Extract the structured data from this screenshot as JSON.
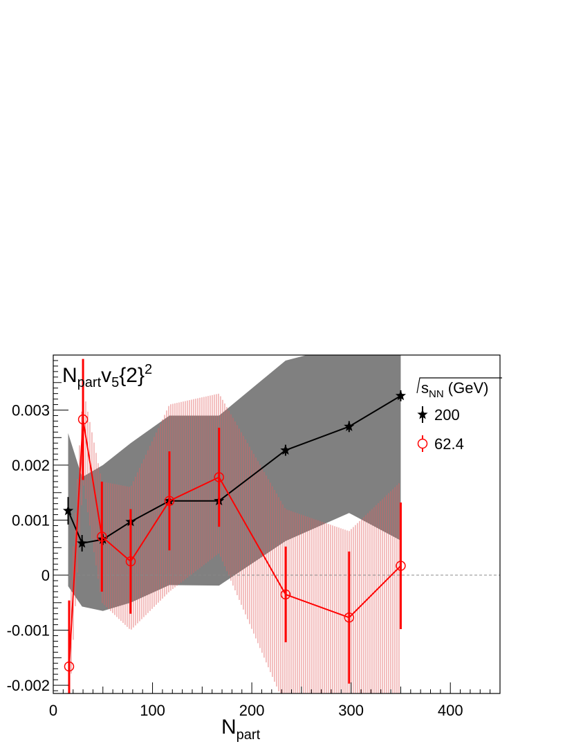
{
  "chart_data": {
    "type": "scatter",
    "title_main": "N",
    "title_sub": "part",
    "title_main2": "v",
    "title_sub2": "5",
    "title_tail": "{2}",
    "title_sup": "2",
    "xlabel_main": "N",
    "xlabel_sub": "part",
    "ylabel": "",
    "xlim": [
      0,
      450
    ],
    "ylim": [
      -0.00215,
      0.004
    ],
    "x_ticks": [
      "0",
      "100",
      "200",
      "300",
      "400"
    ],
    "y_ticks": [
      "-0.002",
      "-0.001",
      "0",
      "0.001",
      "0.002",
      "0.003"
    ],
    "y_tick_values": [
      -0.002,
      -0.001,
      0,
      0.001,
      0.002,
      0.003
    ],
    "x_tick_values": [
      0,
      100,
      200,
      300,
      400
    ],
    "legend": {
      "header_main": "s",
      "header_sub": "NN",
      "header_tail": " (GeV)",
      "placement": "top-right"
    },
    "series": [
      {
        "name": "200",
        "color": "#000000",
        "marker": "star",
        "x": [
          15,
          29,
          50,
          78,
          117,
          167,
          234,
          298,
          350
        ],
        "y": [
          0.00117,
          0.00058,
          0.00065,
          0.00097,
          0.00135,
          0.00135,
          0.00227,
          0.0027,
          0.00326
        ],
        "stat_err": [
          0.00025,
          0.00015,
          0.0001,
          0.0001,
          0.0001,
          0.0001,
          0.0001,
          0.0001,
          0.0001
        ],
        "sys_low": [
          -0.0002,
          -0.00057,
          -0.00065,
          -0.0005,
          -0.00018,
          -0.00019,
          0.00062,
          0.00113,
          0.00063
        ],
        "sys_high": [
          0.00258,
          0.00178,
          0.002,
          0.0024,
          0.0029,
          0.0029,
          0.0039,
          0.0042,
          0.0042
        ],
        "band_color": "#808080"
      },
      {
        "name": "62.4",
        "color": "#ff0000",
        "marker": "open-circle",
        "x": [
          16,
          30,
          49,
          78,
          117,
          167,
          234,
          298,
          350
        ],
        "y": [
          -0.00166,
          0.00283,
          0.0007,
          0.00025,
          0.00135,
          0.00178,
          -0.00035,
          -0.00077,
          0.00017
        ],
        "stat_err": [
          0.0012,
          0.0011,
          0.001,
          0.00095,
          0.0009,
          0.0009,
          0.00087,
          0.0012,
          0.00115
        ],
        "sys_low": [
          -0.0024,
          0.0017,
          -0.0005,
          -0.001,
          -0.0003,
          0.0004,
          -0.0024,
          -0.0024,
          -0.0024
        ],
        "sys_high": [
          -0.0007,
          0.0034,
          0.0017,
          0.0016,
          0.0031,
          0.0033,
          0.0012,
          0.0008,
          0.0017
        ]
      }
    ],
    "reference_line": {
      "y": 0,
      "style": "dashed",
      "color": "#888888"
    }
  }
}
